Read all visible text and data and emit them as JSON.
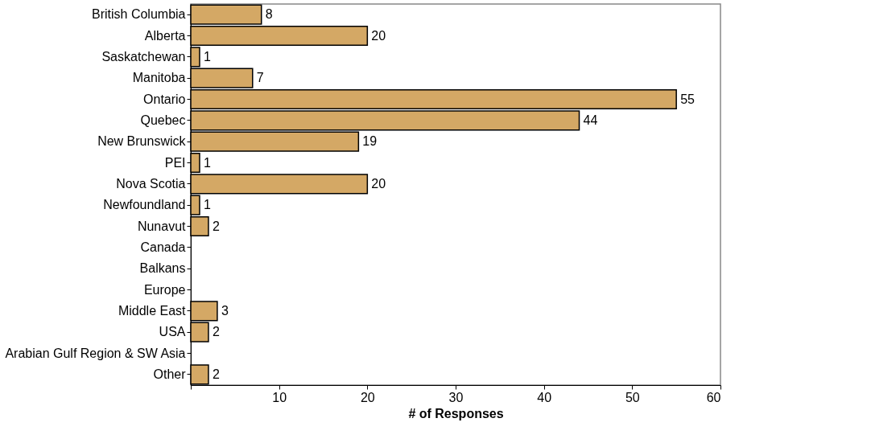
{
  "chart_data": {
    "type": "bar",
    "orientation": "horizontal",
    "xlabel": "# of Responses",
    "categories": [
      "British Columbia",
      "Alberta",
      "Saskatchewan",
      "Manitoba",
      "Ontario",
      "Quebec",
      "New Brunswick",
      "PEI",
      "Nova Scotia",
      "Newfoundland",
      "Nunavut",
      "Canada",
      "Balkans",
      "Europe",
      "Middle East",
      "USA",
      "Arabian Gulf Region & SW Asia",
      "Other"
    ],
    "values": [
      8,
      20,
      1,
      7,
      55,
      44,
      19,
      1,
      20,
      1,
      2,
      null,
      null,
      null,
      3,
      2,
      null,
      2
    ],
    "value_labels": [
      "8",
      "20",
      "1",
      "7",
      "55",
      "44",
      "19",
      "1",
      "20",
      "1",
      "2",
      null,
      null,
      null,
      "3",
      "2",
      null,
      "2"
    ],
    "color": "#d4a865",
    "xlim": [
      0,
      60
    ],
    "xticks": [
      {
        "value": 0,
        "label": null
      },
      10,
      20,
      30,
      40,
      50,
      60
    ],
    "grid": false
  }
}
